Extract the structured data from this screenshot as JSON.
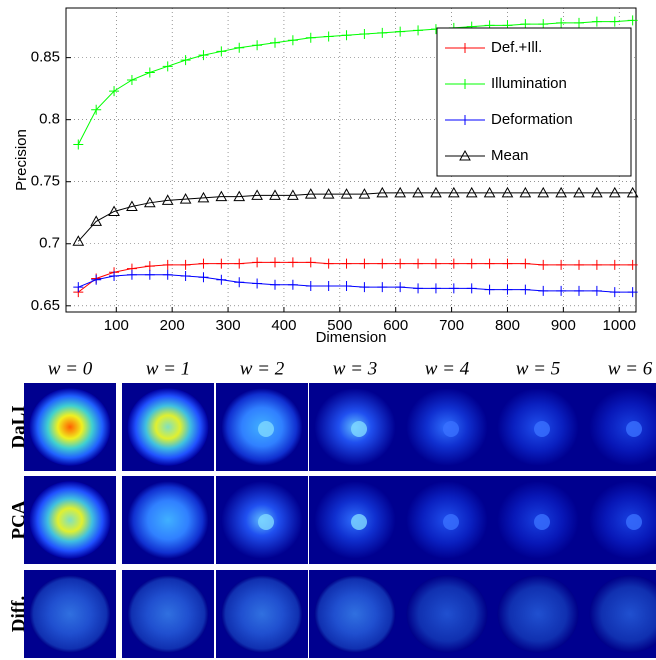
{
  "chart_data": {
    "type": "line",
    "xlabel": "Dimension",
    "ylabel": "Precision",
    "x": [
      32,
      64,
      96,
      128,
      160,
      192,
      224,
      256,
      288,
      320,
      352,
      384,
      416,
      448,
      480,
      512,
      544,
      576,
      608,
      640,
      672,
      704,
      736,
      768,
      800,
      832,
      864,
      896,
      928,
      960,
      992,
      1024
    ],
    "series": [
      {
        "name": "Def.+Ill.",
        "color": "#ff0000",
        "marker": "plus",
        "values": [
          0.661,
          0.672,
          0.677,
          0.68,
          0.682,
          0.683,
          0.683,
          0.684,
          0.684,
          0.684,
          0.685,
          0.685,
          0.685,
          0.685,
          0.684,
          0.684,
          0.684,
          0.684,
          0.684,
          0.684,
          0.684,
          0.684,
          0.684,
          0.684,
          0.684,
          0.684,
          0.683,
          0.683,
          0.683,
          0.683,
          0.683,
          0.683
        ]
      },
      {
        "name": "Illumination",
        "color": "#00ff00",
        "marker": "plus",
        "values": [
          0.78,
          0.808,
          0.823,
          0.832,
          0.838,
          0.843,
          0.848,
          0.852,
          0.855,
          0.858,
          0.86,
          0.862,
          0.864,
          0.866,
          0.867,
          0.868,
          0.869,
          0.87,
          0.871,
          0.872,
          0.873,
          0.874,
          0.875,
          0.876,
          0.876,
          0.877,
          0.877,
          0.878,
          0.878,
          0.879,
          0.879,
          0.88
        ]
      },
      {
        "name": "Deformation",
        "color": "#0000ff",
        "marker": "plus",
        "values": [
          0.665,
          0.671,
          0.674,
          0.675,
          0.675,
          0.675,
          0.674,
          0.673,
          0.671,
          0.669,
          0.668,
          0.667,
          0.667,
          0.666,
          0.666,
          0.666,
          0.665,
          0.665,
          0.665,
          0.664,
          0.664,
          0.664,
          0.664,
          0.663,
          0.663,
          0.663,
          0.662,
          0.662,
          0.662,
          0.662,
          0.661,
          0.661
        ]
      },
      {
        "name": "Mean",
        "color": "#000000",
        "marker": "triangle",
        "values": [
          0.702,
          0.718,
          0.726,
          0.73,
          0.733,
          0.735,
          0.736,
          0.737,
          0.738,
          0.738,
          0.739,
          0.739,
          0.739,
          0.74,
          0.74,
          0.74,
          0.74,
          0.741,
          0.741,
          0.741,
          0.741,
          0.741,
          0.741,
          0.741,
          0.741,
          0.741,
          0.741,
          0.741,
          0.741,
          0.741,
          0.741,
          0.741
        ]
      }
    ],
    "xlim": [
      10,
      1030
    ],
    "ylim": [
      0.645,
      0.89
    ],
    "xticks": [
      100,
      200,
      300,
      400,
      500,
      600,
      700,
      800,
      900,
      1000
    ],
    "yticks": [
      0.65,
      0.7,
      0.75,
      0.8,
      0.85
    ],
    "grid": true,
    "legend": "northeast"
  },
  "image_grid": {
    "columns": [
      "w = 0",
      "w = 1",
      "w = 2",
      "w = 3",
      "w = 4",
      "w = 5",
      "w = 6"
    ],
    "rows": [
      "DaLI",
      "PCA",
      "Diff."
    ]
  }
}
